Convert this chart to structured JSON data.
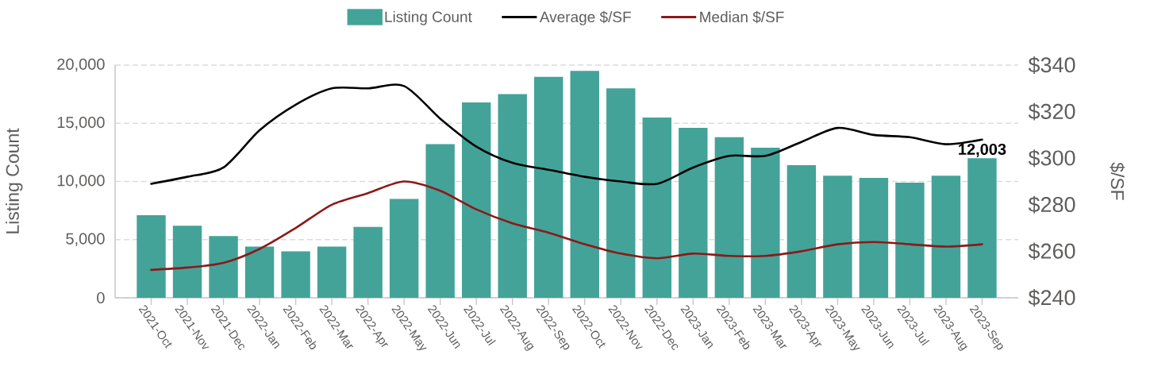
{
  "chart_data": {
    "type": "bar",
    "categories": [
      "2021-Oct",
      "2021-Nov",
      "2021-Dec",
      "2022-Jan",
      "2022-Feb",
      "2022-Mar",
      "2022-Apr",
      "2022-May",
      "2022-Jun",
      "2022-Jul",
      "2022-Aug",
      "2022-Sep",
      "2022-Oct",
      "2022-Nov",
      "2022-Dec",
      "2023-Jan",
      "2023-Feb",
      "2023-Mar",
      "2023-Apr",
      "2023-May",
      "2023-Jun",
      "2023-Jul",
      "2023-Aug",
      "2023-Sep"
    ],
    "series": [
      {
        "name": "Listing Count",
        "color": "#43a399",
        "values": [
          7100,
          6200,
          5300,
          4400,
          4000,
          4400,
          6100,
          8500,
          13200,
          16800,
          17500,
          19000,
          19500,
          18000,
          15500,
          14600,
          13800,
          12900,
          11400,
          10500,
          10300,
          9900,
          10500,
          12003
        ],
        "value_labels": [
          null,
          null,
          null,
          null,
          null,
          null,
          null,
          null,
          null,
          null,
          null,
          null,
          null,
          null,
          null,
          null,
          null,
          null,
          null,
          null,
          null,
          null,
          null,
          "12,003"
        ]
      },
      {
        "name": "Average $/SF",
        "type": "line",
        "axis": "y2",
        "color": "#000000",
        "values": [
          289,
          292,
          296,
          312,
          323,
          330,
          330,
          331,
          317,
          305,
          298,
          295,
          292,
          290,
          289,
          296,
          301,
          301,
          307,
          313,
          310,
          309,
          306,
          308
        ]
      },
      {
        "name": "Median $/SF",
        "type": "line",
        "axis": "y2",
        "color": "#8b1a1a",
        "values": [
          252,
          253,
          255,
          261,
          270,
          280,
          285,
          290,
          286,
          278,
          272,
          268,
          263,
          259,
          257,
          259,
          258,
          258,
          260,
          263,
          264,
          263,
          262,
          263
        ]
      }
    ],
    "ylabel": "Listing Count",
    "y2label": "$/SF",
    "ylim": [
      0,
      20000
    ],
    "yticks": [
      0,
      {
        "value": 5000,
        "label": "5,000"
      },
      {
        "value": 10000,
        "label": "10,000"
      },
      {
        "value": 15000,
        "label": "15,000"
      },
      {
        "value": 20000,
        "label": "20,000"
      }
    ],
    "y2lim": [
      240,
      340
    ],
    "y2ticks": [
      {
        "value": 240,
        "label": "$240"
      },
      {
        "value": 260,
        "label": "$260"
      },
      {
        "value": 280,
        "label": "$280"
      },
      {
        "value": 300,
        "label": "$300"
      },
      {
        "value": 320,
        "label": "$320"
      },
      {
        "value": 340,
        "label": "$340"
      }
    ],
    "grid": "y",
    "legend": "top"
  }
}
